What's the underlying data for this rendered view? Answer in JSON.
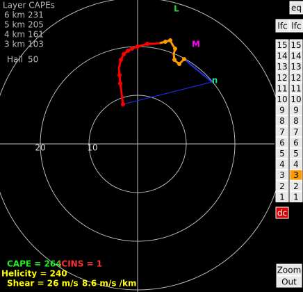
{
  "layer_capes": {
    "title": "Layer CAPEs",
    "rows": [
      {
        "layer": "6 km",
        "value": 231
      },
      {
        "layer": "5 km",
        "value": 205
      },
      {
        "layer": "4 km",
        "value": 161
      },
      {
        "layer": "3 km",
        "value": 103
      }
    ],
    "hail": {
      "label": "Hail",
      "value": 50
    }
  },
  "ring_labels": [
    "20",
    "10"
  ],
  "markers": {
    "l": "L",
    "m": "M",
    "n": "n"
  },
  "buttons": {
    "top": [
      "eq",
      "lfc",
      "lfc"
    ],
    "left": [
      "15",
      "14",
      "13",
      "12",
      "11",
      "10",
      "9",
      "8",
      "7",
      "6",
      "5",
      "4",
      "3",
      "2",
      "1"
    ],
    "right": [
      "15",
      "14",
      "13",
      "12",
      "11",
      "10",
      "9",
      "8",
      "7",
      "6",
      "5",
      "4",
      "3",
      "2",
      "1"
    ],
    "dc": "dc",
    "zoom": "Zoom",
    "out": "Out"
  },
  "stats": {
    "cape": "CAPE = 264",
    "cins": "\\CINS = 1",
    "helicity": "Helicity =  240",
    "shear": "Shear =  26 m/s",
    "shear_rate": "8.6 m/s /km"
  }
}
